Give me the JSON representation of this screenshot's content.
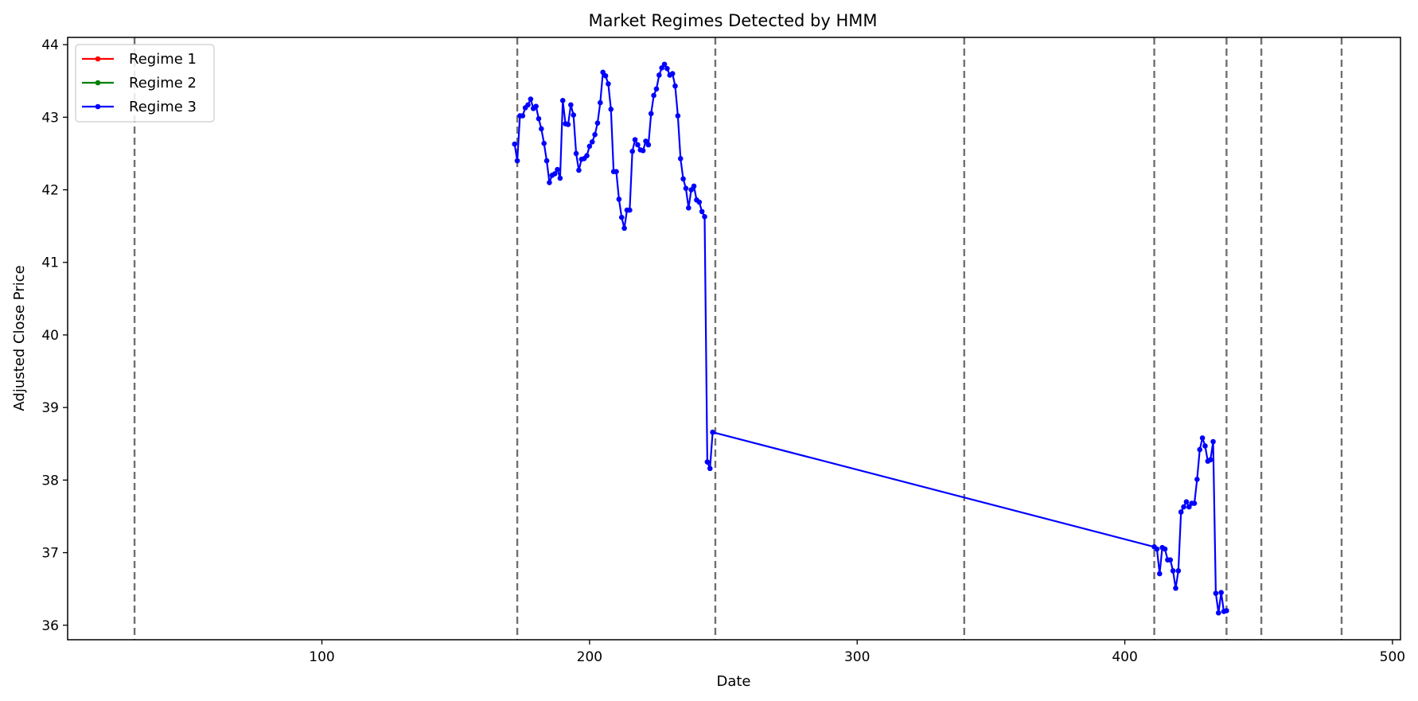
{
  "chart_data": {
    "type": "line",
    "title": "Market Regimes Detected by HMM",
    "xlabel": "Date",
    "ylabel": "Adjusted Close Price",
    "xlim": [
      5,
      503
    ],
    "ylim": [
      35.8,
      44.1
    ],
    "xticks": [
      100,
      200,
      300,
      400,
      500
    ],
    "yticks": [
      36,
      37,
      38,
      39,
      40,
      41,
      42,
      43,
      44
    ],
    "grid": false,
    "legend_position": "top-left",
    "legend": [
      {
        "label": "Regime 1",
        "color": "#ff0000"
      },
      {
        "label": "Regime 2",
        "color": "#008000"
      },
      {
        "label": "Regime 3",
        "color": "#0000ff"
      }
    ],
    "regime_change_lines": [
      30,
      173,
      247,
      340,
      411,
      438,
      451,
      481
    ],
    "series": [
      {
        "name": "Regime 3",
        "color": "#0000ff",
        "points": [
          [
            172,
            42.63
          ],
          [
            173,
            42.4
          ],
          [
            174,
            43.02
          ],
          [
            175,
            43.02
          ],
          [
            176,
            43.13
          ],
          [
            177,
            43.17
          ],
          [
            178,
            43.25
          ],
          [
            179,
            43.12
          ],
          [
            180,
            43.15
          ],
          [
            181,
            42.98
          ],
          [
            182,
            42.84
          ],
          [
            183,
            42.64
          ],
          [
            184,
            42.4
          ],
          [
            185,
            42.1
          ],
          [
            186,
            42.2
          ],
          [
            187,
            42.22
          ],
          [
            188,
            42.28
          ],
          [
            189,
            42.16
          ],
          [
            190,
            43.23
          ],
          [
            191,
            42.91
          ],
          [
            192,
            42.9
          ],
          [
            193,
            43.17
          ],
          [
            194,
            43.03
          ],
          [
            195,
            42.5
          ],
          [
            196,
            42.27
          ],
          [
            197,
            42.42
          ],
          [
            198,
            42.43
          ],
          [
            199,
            42.47
          ],
          [
            200,
            42.6
          ],
          [
            201,
            42.66
          ],
          [
            202,
            42.76
          ],
          [
            203,
            42.92
          ],
          [
            204,
            43.2
          ],
          [
            205,
            43.62
          ],
          [
            206,
            43.57
          ],
          [
            207,
            43.46
          ],
          [
            208,
            43.11
          ],
          [
            209,
            42.25
          ],
          [
            210,
            42.25
          ],
          [
            211,
            41.87
          ],
          [
            212,
            41.62
          ],
          [
            213,
            41.47
          ],
          [
            214,
            41.72
          ],
          [
            215,
            41.72
          ],
          [
            216,
            42.53
          ],
          [
            217,
            42.69
          ],
          [
            218,
            42.62
          ],
          [
            219,
            42.55
          ],
          [
            220,
            42.54
          ],
          [
            221,
            42.67
          ],
          [
            222,
            42.62
          ],
          [
            223,
            43.05
          ],
          [
            224,
            43.3
          ],
          [
            225,
            43.39
          ],
          [
            226,
            43.58
          ],
          [
            227,
            43.68
          ],
          [
            228,
            43.73
          ],
          [
            229,
            43.67
          ],
          [
            230,
            43.58
          ],
          [
            231,
            43.6
          ],
          [
            232,
            43.43
          ],
          [
            233,
            43.02
          ],
          [
            234,
            42.43
          ],
          [
            235,
            42.15
          ],
          [
            236,
            42.02
          ],
          [
            237,
            41.75
          ],
          [
            238,
            42.0
          ],
          [
            239,
            42.05
          ],
          [
            240,
            41.86
          ],
          [
            241,
            41.83
          ],
          [
            242,
            41.7
          ],
          [
            243,
            41.63
          ],
          [
            244,
            38.25
          ],
          [
            245,
            38.16
          ],
          [
            246,
            38.66
          ],
          [
            411,
            37.08
          ],
          [
            412,
            37.05
          ],
          [
            413,
            36.71
          ],
          [
            414,
            37.07
          ],
          [
            415,
            37.05
          ],
          [
            416,
            36.9
          ],
          [
            417,
            36.9
          ],
          [
            418,
            36.75
          ],
          [
            419,
            36.51
          ],
          [
            420,
            36.75
          ],
          [
            421,
            37.56
          ],
          [
            422,
            37.63
          ],
          [
            423,
            37.7
          ],
          [
            424,
            37.63
          ],
          [
            425,
            37.68
          ],
          [
            426,
            37.68
          ],
          [
            427,
            38.01
          ],
          [
            428,
            38.42
          ],
          [
            429,
            38.58
          ],
          [
            430,
            38.47
          ],
          [
            431,
            38.26
          ],
          [
            432,
            38.28
          ],
          [
            433,
            38.53
          ],
          [
            434,
            36.44
          ],
          [
            435,
            36.17
          ],
          [
            436,
            36.45
          ],
          [
            437,
            36.19
          ],
          [
            438,
            36.2
          ]
        ]
      }
    ]
  }
}
